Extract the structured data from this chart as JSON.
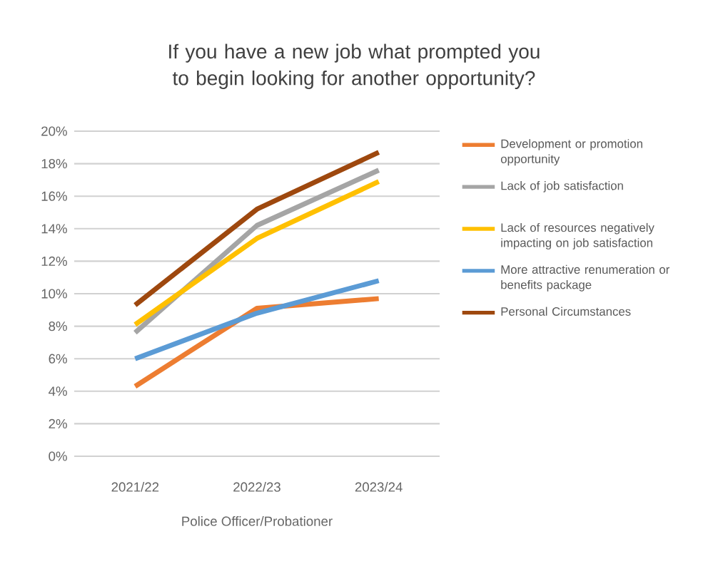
{
  "chart_data": {
    "type": "line",
    "title": "If you have a new job what prompted you to begin looking for another opportunity?",
    "xlabel": "Police Officer/Probationer",
    "categories": [
      "2021/22",
      "2022/23",
      "2023/24"
    ],
    "series": [
      {
        "name": "Development or promotion opportunity",
        "color": "#ed7d31",
        "values": [
          4.3,
          9.1,
          9.7
        ]
      },
      {
        "name": "Lack of job satisfaction",
        "color": "#a5a5a5",
        "values": [
          7.6,
          14.2,
          17.6
        ]
      },
      {
        "name": "Lack of resources negatively impacting on job satisfaction",
        "color": "#ffc000",
        "values": [
          8.1,
          13.4,
          16.9
        ]
      },
      {
        "name": "More attractive renumeration or benefits package",
        "color": "#5b9bd5",
        "values": [
          6.0,
          8.8,
          10.8
        ]
      },
      {
        "name": "Personal Circumstances",
        "color": "#9e480e",
        "values": [
          9.3,
          15.2,
          18.7
        ]
      }
    ],
    "ylim": [
      0,
      20
    ],
    "yticks": [
      {
        "value": 0,
        "label": "0%"
      },
      {
        "value": 2,
        "label": "2%"
      },
      {
        "value": 4,
        "label": "4%"
      },
      {
        "value": 6,
        "label": "6%"
      },
      {
        "value": 8,
        "label": "8%"
      },
      {
        "value": 10,
        "label": "10%"
      },
      {
        "value": 12,
        "label": "12%"
      },
      {
        "value": 14,
        "label": "14%"
      },
      {
        "value": 16,
        "label": "16%"
      },
      {
        "value": 18,
        "label": "18%"
      },
      {
        "value": 20,
        "label": "20%"
      }
    ],
    "grid": "y",
    "legend": "right",
    "marker": "none",
    "line_style": "solid"
  }
}
